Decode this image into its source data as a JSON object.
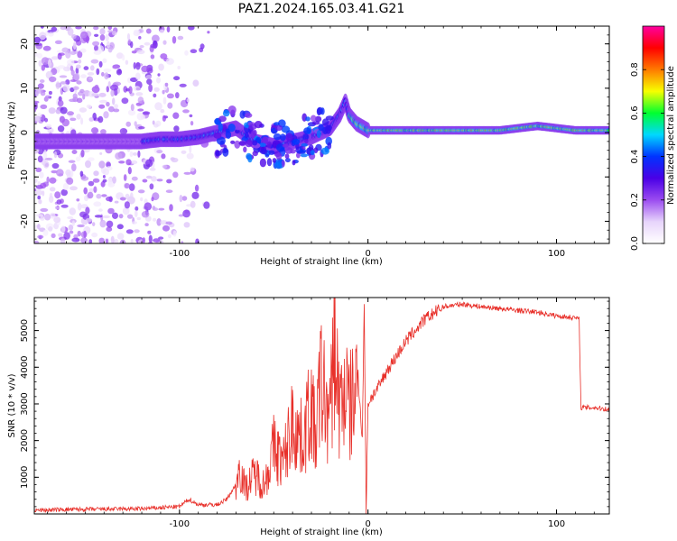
{
  "title": "PAZ1.2024.165.03.41.G21",
  "colors": {
    "snr_line": "#e8302a",
    "axis": "#000000",
    "colormap": [
      "#ffffff",
      "#e7d4fb",
      "#9b4cf0",
      "#4a00e6",
      "#0033ff",
      "#00d8ff",
      "#00ff30",
      "#f7ff00",
      "#ff7a00",
      "#ff0000",
      "#ff00a0"
    ]
  },
  "colorbar": {
    "label": "Normalized spectral amplitude",
    "range": [
      0,
      1
    ],
    "ticks": [
      "0.0",
      "0.2",
      "0.4",
      "0.6",
      "0.8"
    ]
  },
  "chart_data": [
    {
      "type": "heatmap",
      "name": "spectrogram",
      "xlabel": "Height of straight line (km)",
      "ylabel": "Frequency (Hz)",
      "xlim": [
        -177,
        128
      ],
      "ylim": [
        -25,
        24
      ],
      "xticks": [
        "-100",
        "0",
        "100"
      ],
      "yticks": [
        "20",
        "10",
        "0",
        "-10",
        "-20"
      ],
      "ridge": {
        "x": [
          -177,
          -160,
          -140,
          -120,
          -110,
          -100,
          -90,
          -80,
          -70,
          -60,
          -50,
          -40,
          -30,
          -20,
          -15,
          -12,
          -10,
          -6,
          -2,
          0,
          10,
          30,
          50,
          70,
          80,
          90,
          100,
          110,
          120,
          128
        ],
        "y": [
          -2,
          -2,
          -2,
          -2,
          -1.5,
          -1.5,
          -1,
          0,
          1,
          -2,
          -3,
          -2,
          -1,
          1,
          4,
          7,
          4,
          2,
          1,
          0.5,
          0.5,
          0.5,
          0.5,
          0.5,
          1,
          1.5,
          1,
          0.5,
          0.5,
          0.5
        ]
      }
    },
    {
      "type": "line",
      "name": "snr",
      "xlabel": "Height of straight line (km)",
      "ylabel": "SNR (10 * v/v)",
      "xlim": [
        -177,
        128
      ],
      "ylim": [
        0,
        5900
      ],
      "xticks": [
        "-100",
        "0",
        "100"
      ],
      "yticks": [
        "1000",
        "2000",
        "3000",
        "4000",
        "5000"
      ],
      "x": [
        -177,
        -160,
        -140,
        -120,
        -100,
        -95,
        -90,
        -80,
        -75,
        -70,
        -68,
        -65,
        -60,
        -55,
        -50,
        -45,
        -40,
        -35,
        -30,
        -28,
        -25,
        -20,
        -18,
        -15,
        -12,
        -10,
        -8,
        -5,
        -3,
        -2,
        -1,
        0,
        2,
        5,
        10,
        15,
        20,
        25,
        30,
        40,
        50,
        60,
        70,
        80,
        90,
        100,
        110,
        112,
        113,
        120,
        128
      ],
      "y": [
        100,
        120,
        130,
        140,
        200,
        400,
        250,
        250,
        400,
        800,
        1300,
        700,
        1100,
        800,
        1800,
        1400,
        2500,
        2000,
        3000,
        2000,
        3600,
        2500,
        4800,
        2800,
        3500,
        2800,
        3100,
        3600,
        2000,
        5850,
        0,
        3000,
        3200,
        3400,
        3900,
        4300,
        4700,
        5000,
        5300,
        5650,
        5720,
        5650,
        5600,
        5550,
        5500,
        5400,
        5350,
        5300,
        2900,
        2900,
        2850
      ]
    }
  ]
}
